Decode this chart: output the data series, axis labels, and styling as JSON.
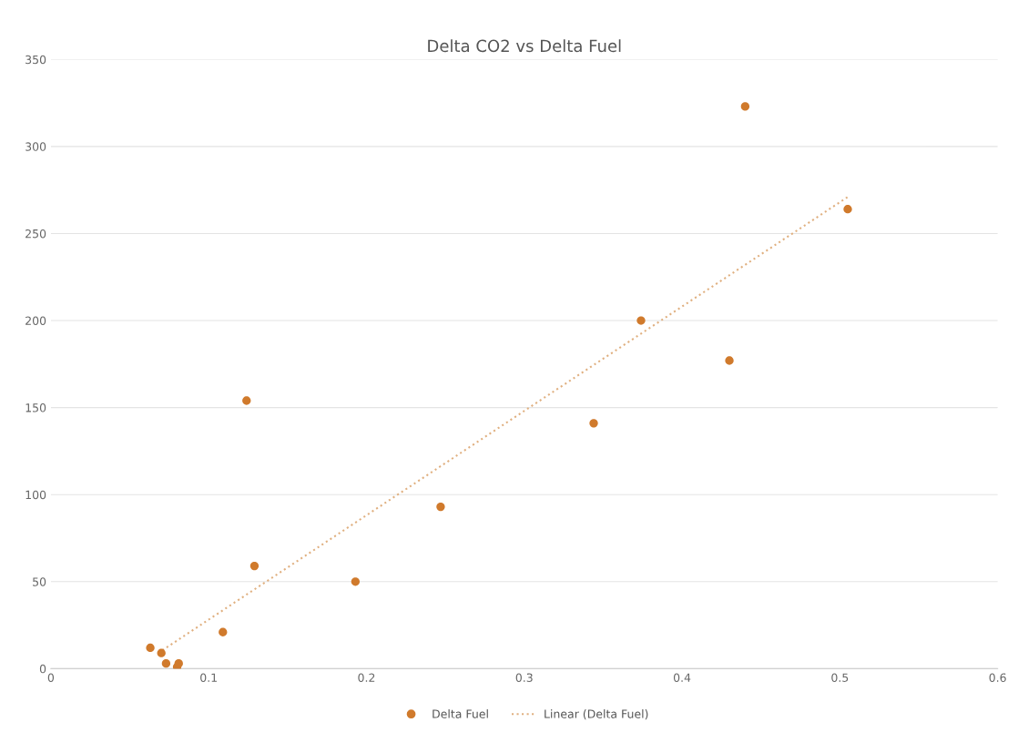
{
  "chart_data": {
    "type": "scatter",
    "title": "Delta CO2 vs Delta Fuel",
    "series": [
      {
        "name": "Delta Fuel",
        "color": "#d07a2c",
        "marker": "circle",
        "x": [
          0.063,
          0.07,
          0.073,
          0.08,
          0.081,
          0.109,
          0.124,
          0.129,
          0.193,
          0.247,
          0.344,
          0.374,
          0.43,
          0.44,
          0.505
        ],
        "values": [
          12,
          9,
          3,
          1,
          3,
          21,
          154,
          59,
          50,
          93,
          141,
          200,
          177,
          323,
          264
        ]
      },
      {
        "name": "Linear (Delta Fuel)",
        "type": "line",
        "color": "#e0b080",
        "line_style": "dotted",
        "marker": "none",
        "x": [
          0.068,
          0.505
        ],
        "values": [
          9,
          271
        ]
      }
    ],
    "xlim": [
      0,
      0.6
    ],
    "xticks": [
      0,
      0.1,
      0.2,
      0.3,
      0.4,
      0.5,
      0.6
    ],
    "ylim": [
      0,
      350
    ],
    "yticks": [
      0,
      50,
      100,
      150,
      200,
      250,
      300,
      350
    ],
    "grid": "y",
    "legend": "bottom"
  }
}
